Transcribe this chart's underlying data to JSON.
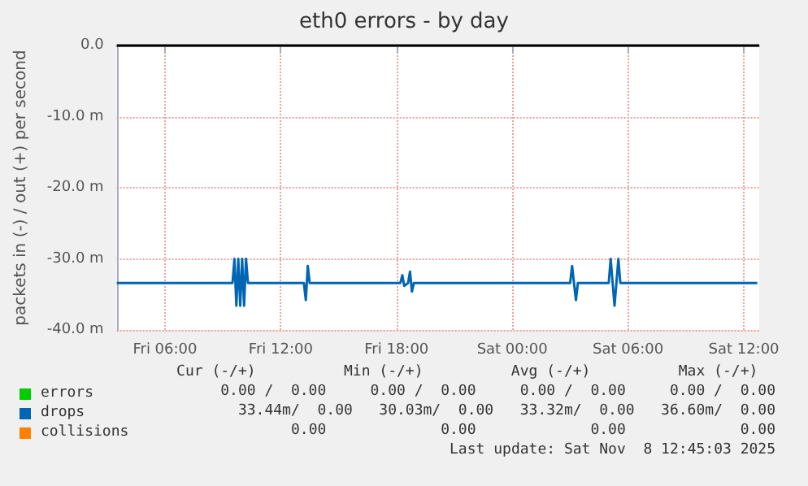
{
  "chart_data": {
    "type": "line",
    "title": "eth0 errors - by day",
    "ylabel": "packets in (-) / out (+) per second",
    "xlim": [
      "2025-11-07T03:30",
      "2025-11-08T12:48"
    ],
    "xticks": [
      {
        "value": "2025-11-07T06:00",
        "label": "Fri 06:00"
      },
      {
        "value": "2025-11-07T12:00",
        "label": "Fri 12:00"
      },
      {
        "value": "2025-11-07T18:00",
        "label": "Fri 18:00"
      },
      {
        "value": "2025-11-08T00:00",
        "label": "Sat 00:00"
      },
      {
        "value": "2025-11-08T06:00",
        "label": "Sat 06:00"
      },
      {
        "value": "2025-11-08T12:00",
        "label": "Sat 12:00"
      }
    ],
    "ylim": [
      -40,
      0
    ],
    "yticks": [
      {
        "value": -40,
        "label": "-40.0 m"
      },
      {
        "value": -30,
        "label": "-30.0 m"
      },
      {
        "value": -20,
        "label": "-20.0 m"
      },
      {
        "value": -10,
        "label": "-10.0 m"
      },
      {
        "value": 0,
        "label": "0.0"
      }
    ],
    "grid": true,
    "legend": "bottom left",
    "marker": "none",
    "line_style": "solid",
    "series": [
      {
        "name": "errors",
        "color": "#00cc00"
      },
      {
        "name": "drops",
        "color": "#0066b3",
        "x": [
          "2025-11-07T03:30",
          "2025-11-07T09:30",
          "2025-11-07T09:36",
          "2025-11-07T09:42",
          "2025-11-07T09:48",
          "2025-11-07T09:54",
          "2025-11-07T10:00",
          "2025-11-07T10:06",
          "2025-11-07T10:12",
          "2025-11-07T10:18",
          "2025-11-07T13:12",
          "2025-11-07T13:18",
          "2025-11-07T13:24",
          "2025-11-07T13:30",
          "2025-11-07T18:12",
          "2025-11-07T18:18",
          "2025-11-07T18:24",
          "2025-11-07T18:36",
          "2025-11-07T18:42",
          "2025-11-07T18:48",
          "2025-11-07T18:54",
          "2025-11-08T03:00",
          "2025-11-08T03:06",
          "2025-11-08T03:18",
          "2025-11-08T03:24",
          "2025-11-08T05:00",
          "2025-11-08T05:06",
          "2025-11-08T05:18",
          "2025-11-08T05:30",
          "2025-11-08T05:36",
          "2025-11-08T12:42"
        ],
        "values": [
          -33.4,
          -33.4,
          -30,
          -36.6,
          -30,
          -36.6,
          -30,
          -36.6,
          -30,
          -33.4,
          -33.4,
          -35.8,
          -31,
          -33.4,
          -33.4,
          -32.3,
          -33.8,
          -33.4,
          -31.8,
          -34.6,
          -33.4,
          -33.4,
          -31,
          -35.8,
          -33.4,
          -33.4,
          -30,
          -36.6,
          -30,
          -33.4,
          -33.4
        ]
      },
      {
        "name": "collisions",
        "color": "#ff8000"
      }
    ],
    "ref_lines": [
      {
        "axis": "y",
        "value": 0,
        "color": "#000000"
      }
    ],
    "annotations": [
      "Cur (-/+)          Min (-/+)          Avg (-/+)          Max (-/+)  ",
      "0.00 /  0.00     0.00 /  0.00     0.00 /  0.00     0.00 /  0.00",
      "33.44m/  0.00   30.03m/  0.00   33.32m/  0.00   36.60m/  0.00",
      "0.00             0.00             0.00             0.00",
      "Last update: Sat Nov  8 12:45:03 2025"
    ]
  }
}
